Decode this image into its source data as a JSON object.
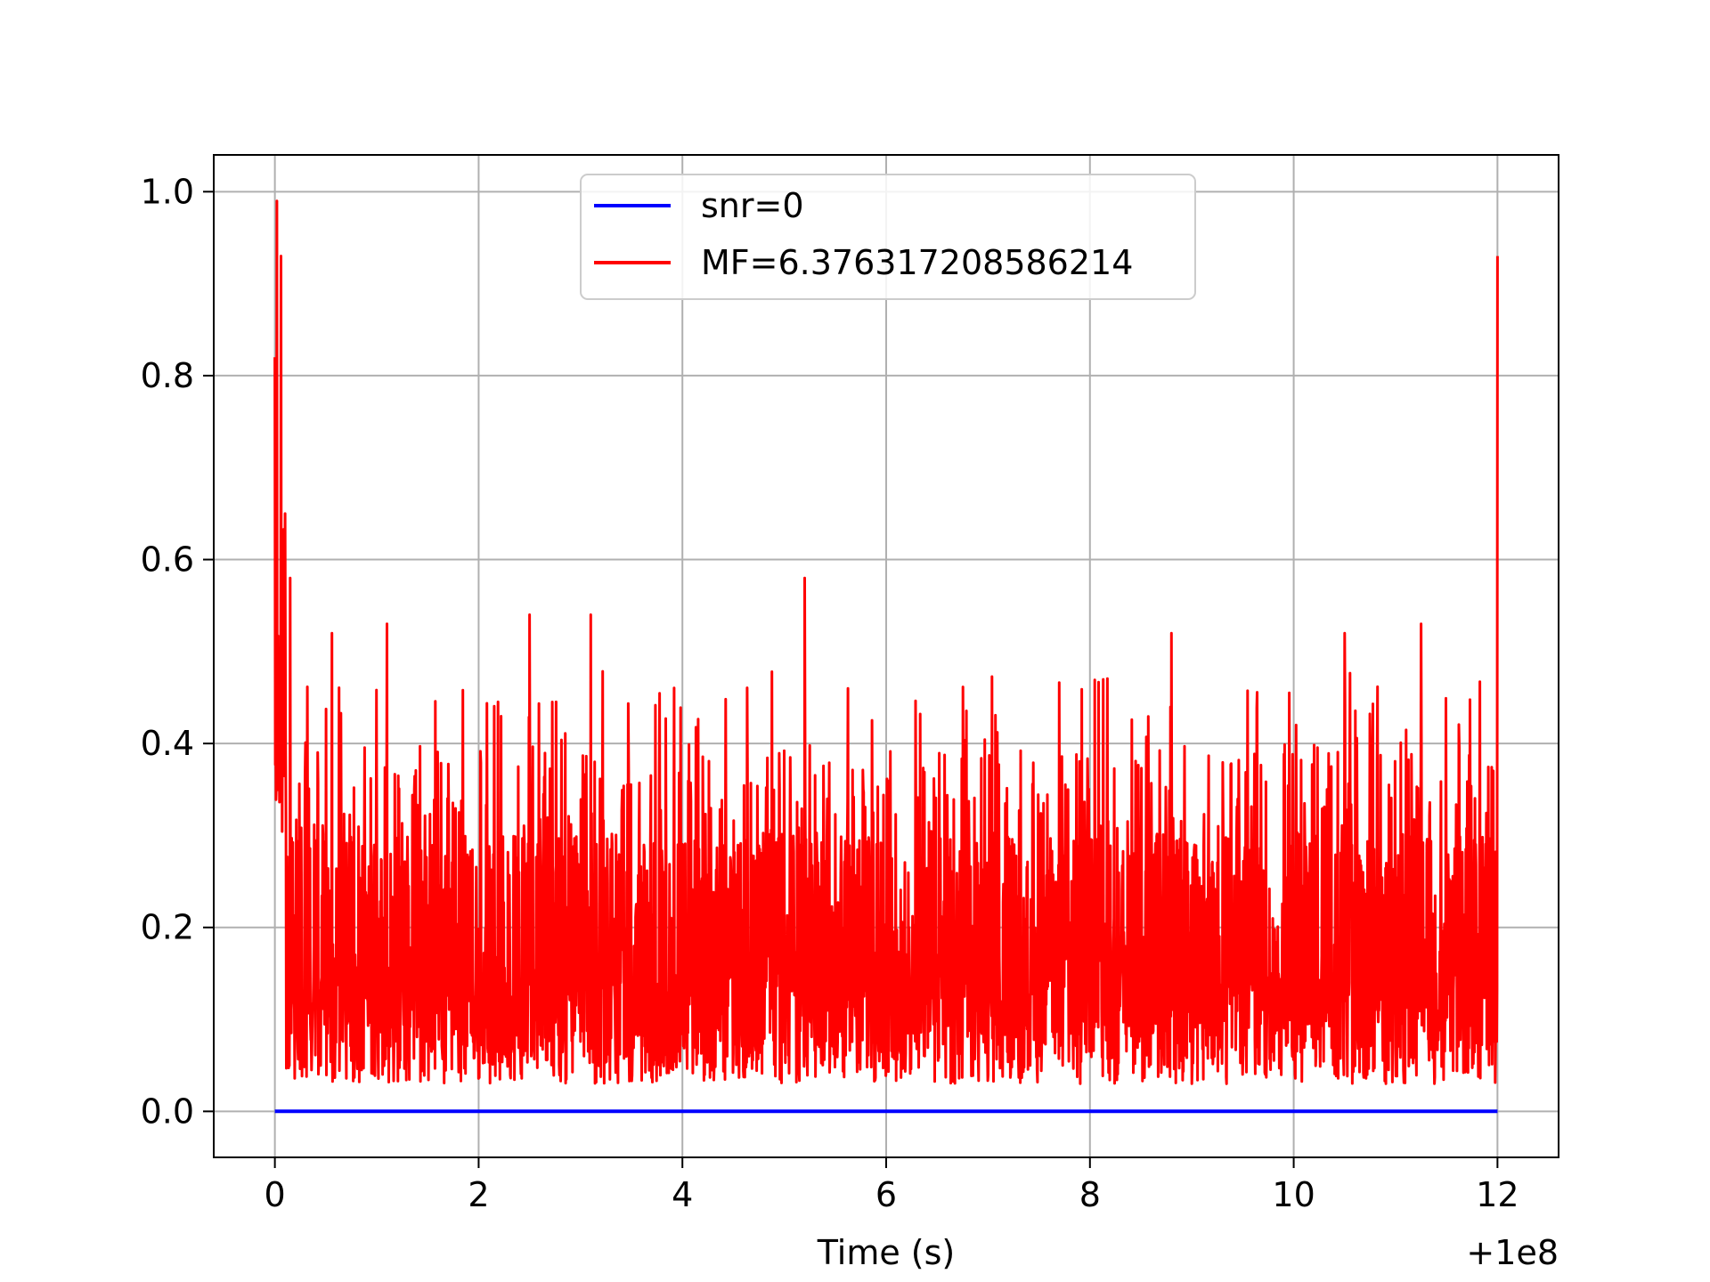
{
  "chart_data": {
    "type": "line",
    "xlabel": "Time (s)",
    "x_offset_label": "+1e8",
    "xlim": [
      -0.6,
      12.6
    ],
    "ylim": [
      -0.05,
      1.04
    ],
    "x_ticks": [
      0,
      2,
      4,
      6,
      8,
      10,
      12
    ],
    "x_tick_labels": [
      "0",
      "2",
      "4",
      "6",
      "8",
      "10",
      "12"
    ],
    "y_ticks": [
      0.0,
      0.2,
      0.4,
      0.6,
      0.8,
      1.0
    ],
    "y_tick_labels": [
      "0.0",
      "0.2",
      "0.4",
      "0.6",
      "0.8",
      "1.0"
    ],
    "grid": true,
    "legend_position": "upper-center",
    "series": [
      {
        "name": "snr=0",
        "color": "#0000ff",
        "x": [
          0,
          12
        ],
        "y": [
          0,
          0
        ]
      },
      {
        "name": "MF=6.376317208586214",
        "color": "#ff0000",
        "x_range": [
          0,
          12
        ],
        "typical_range": [
          0.0,
          0.3
        ],
        "peaks": [
          {
            "x": 0.0,
            "y": 0.82
          },
          {
            "x": 0.02,
            "y": 0.99
          },
          {
            "x": 0.06,
            "y": 0.93
          },
          {
            "x": 0.1,
            "y": 0.65
          },
          {
            "x": 0.15,
            "y": 0.58
          },
          {
            "x": 0.56,
            "y": 0.52
          },
          {
            "x": 1.1,
            "y": 0.53
          },
          {
            "x": 2.5,
            "y": 0.54
          },
          {
            "x": 3.1,
            "y": 0.54
          },
          {
            "x": 5.2,
            "y": 0.58
          },
          {
            "x": 8.8,
            "y": 0.52
          },
          {
            "x": 10.5,
            "y": 0.52
          },
          {
            "x": 11.25,
            "y": 0.53
          },
          {
            "x": 12.0,
            "y": 0.93
          }
        ]
      }
    ]
  }
}
